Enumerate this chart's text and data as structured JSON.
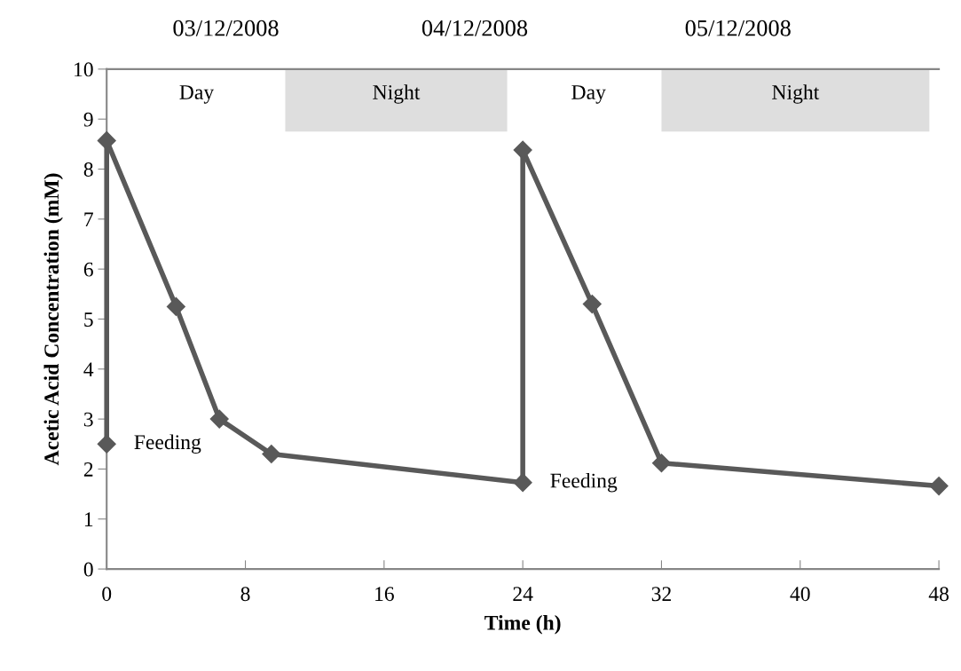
{
  "chart_data": {
    "type": "line",
    "xlabel": "Time (h)",
    "ylabel": "Acetic Acid Concentration (mM)",
    "series": [
      {
        "color": "#595959",
        "x": [
          0,
          0,
          4,
          6.5,
          9.5,
          24,
          24,
          28,
          32,
          48
        ],
        "values": [
          2.5,
          8.57,
          5.25,
          3.0,
          2.3,
          1.73,
          8.38,
          5.3,
          2.12,
          1.66
        ]
      }
    ],
    "xlim": [
      0,
      48
    ],
    "xticks": [
      0,
      8,
      16,
      24,
      32,
      40,
      48
    ],
    "ylim": [
      0,
      10
    ],
    "yticks": [
      0,
      1,
      2,
      3,
      4,
      5,
      6,
      7,
      8,
      9,
      10
    ],
    "marker": "diamond",
    "line_style": "solid",
    "grid": false,
    "bands": [
      {
        "axis": "x",
        "from": 10.3,
        "to": 23.1,
        "label": "Night",
        "color": "#dedede"
      },
      {
        "axis": "x",
        "from": 32,
        "to": 47.45,
        "label": "Night",
        "color": "#dedede"
      }
    ],
    "annotations": [
      "03/12/2008",
      "04/12/2008",
      "05/12/2008",
      "Day",
      "Day",
      {
        "text": "Feeding",
        "x": 0,
        "y": 2.5
      },
      {
        "text": "Feeding",
        "x": 24,
        "y": 1.73
      }
    ]
  }
}
